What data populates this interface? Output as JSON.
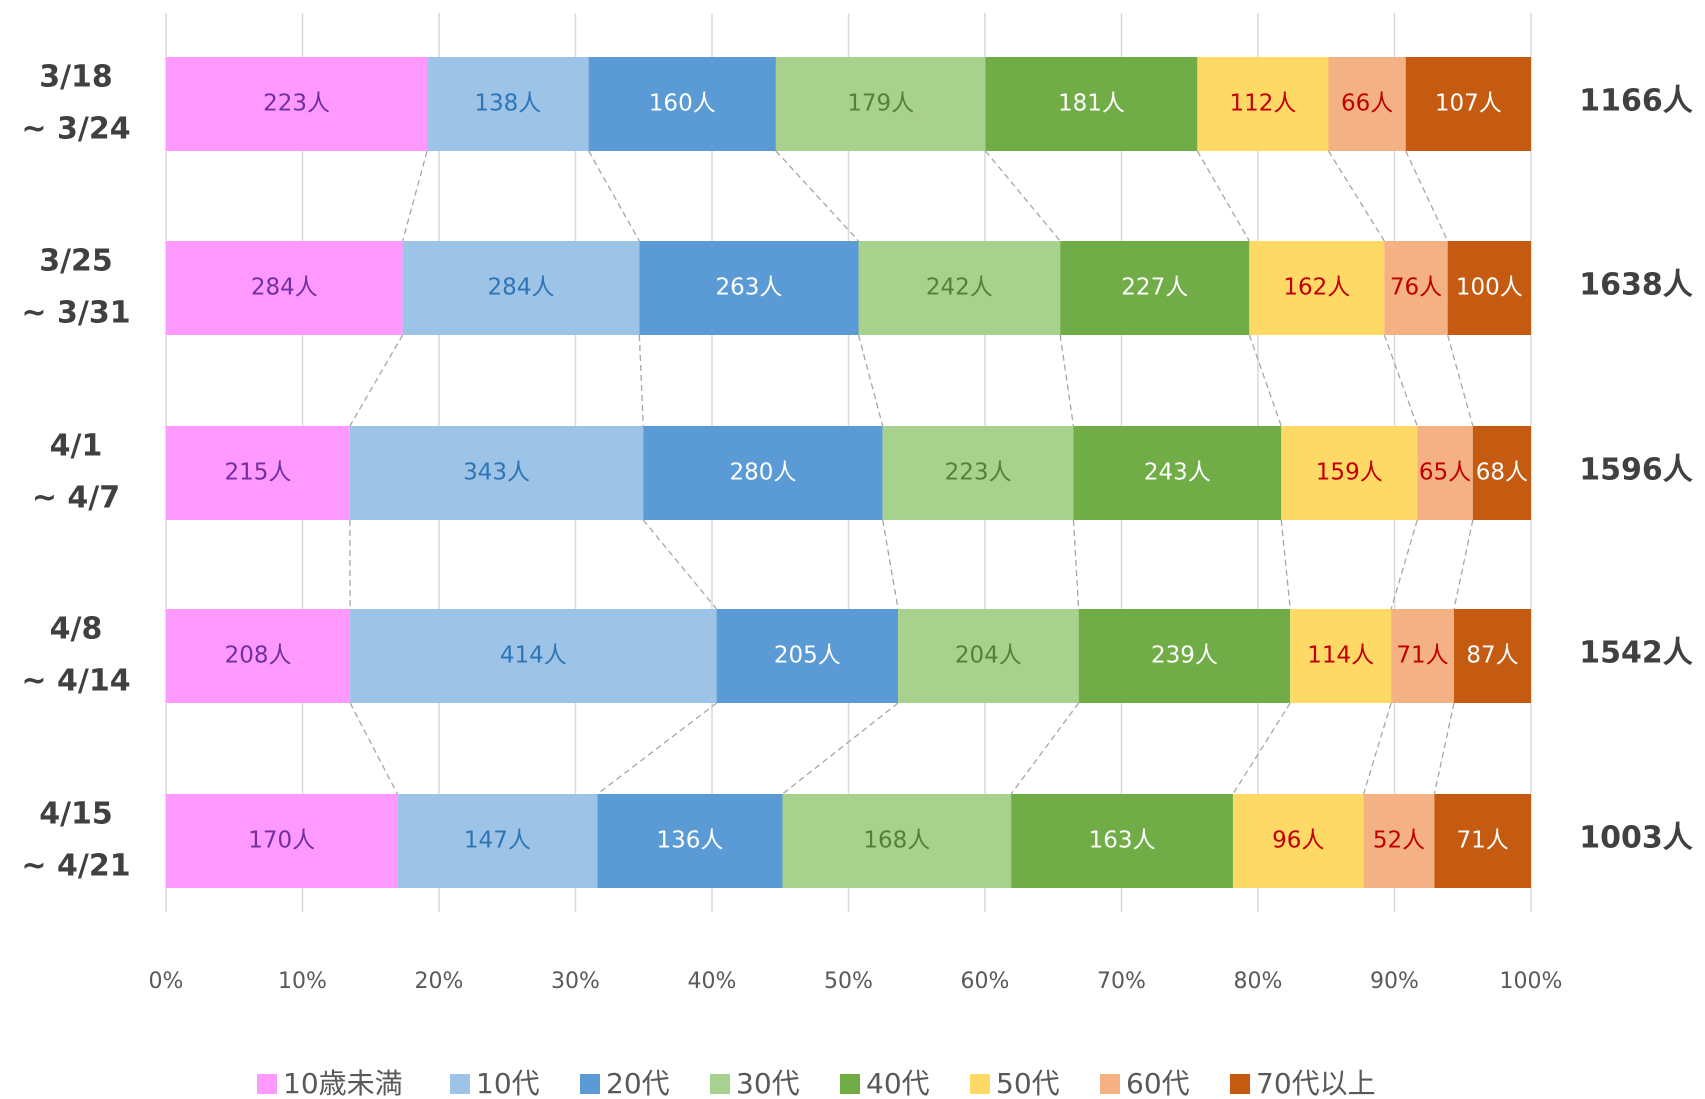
{
  "chart_data": {
    "type": "stacked-bar-100",
    "orientation": "horizontal",
    "categories": [
      [
        "3/18",
        "~ 3/24"
      ],
      [
        "3/25",
        "~ 3/31"
      ],
      [
        "4/1",
        "~ 4/7"
      ],
      [
        "4/8",
        "~ 4/14"
      ],
      [
        "4/15",
        "~ 4/21"
      ]
    ],
    "series": [
      {
        "name": "10歳未満",
        "color": "#ff99ff",
        "label_color": "#7030a0",
        "values": [
          223,
          284,
          215,
          208,
          170
        ],
        "value_labels": [
          "223人",
          "284人",
          "215人",
          "208人",
          "170人"
        ]
      },
      {
        "name": "10代",
        "color": "#9dc3e6",
        "label_color": "#2e75b6",
        "values": [
          138,
          284,
          343,
          414,
          147
        ],
        "value_labels": [
          "138人",
          "284人",
          "343人",
          "414人",
          "147人"
        ]
      },
      {
        "name": "20代",
        "color": "#5b9bd5",
        "label_color": "#ffffff",
        "values": [
          160,
          263,
          280,
          205,
          136
        ],
        "value_labels": [
          "160人",
          "263人",
          "280人",
          "205人",
          "136人"
        ]
      },
      {
        "name": "30代",
        "color": "#a9d18e",
        "label_color": "#548235",
        "values": [
          179,
          242,
          223,
          204,
          168
        ],
        "value_labels": [
          "179人",
          "242人",
          "223人",
          "204人",
          "168人"
        ]
      },
      {
        "name": "40代",
        "color": "#70ad47",
        "label_color": "#ffffff",
        "values": [
          181,
          227,
          243,
          239,
          163
        ],
        "value_labels": [
          "181人",
          "227人",
          "243人",
          "239人",
          "163人"
        ]
      },
      {
        "name": "50代",
        "color": "#ffd966",
        "label_color": "#c00000",
        "values": [
          112,
          162,
          159,
          114,
          96
        ],
        "value_labels": [
          "112人",
          "162人",
          "159人",
          "114人",
          "96人"
        ]
      },
      {
        "name": "60代",
        "color": "#f4b183",
        "label_color": "#c00000",
        "values": [
          66,
          76,
          65,
          71,
          52
        ],
        "value_labels": [
          "66人",
          "76人",
          "65人",
          "71人",
          "52人"
        ]
      },
      {
        "name": "70代以上",
        "color": "#c55a11",
        "label_color": "#ffffff",
        "values": [
          107,
          100,
          68,
          87,
          71
        ],
        "value_labels": [
          "107人",
          "100人",
          "68人",
          "87人",
          "71人"
        ]
      }
    ],
    "totals": [
      1166,
      1638,
      1596,
      1542,
      1003
    ],
    "total_labels": [
      "1166人",
      "1638人",
      "1596人",
      "1542人",
      "1003人"
    ],
    "xlim": [
      0,
      100
    ],
    "xticks": [
      {
        "value": 0,
        "label": "0%"
      },
      {
        "value": 10,
        "label": "10%"
      },
      {
        "value": 20,
        "label": "20%"
      },
      {
        "value": 30,
        "label": "30%"
      },
      {
        "value": 40,
        "label": "40%"
      },
      {
        "value": 50,
        "label": "50%"
      },
      {
        "value": 60,
        "label": "60%"
      },
      {
        "value": 70,
        "label": "70%"
      },
      {
        "value": 80,
        "label": "80%"
      },
      {
        "value": 90,
        "label": "90%"
      },
      {
        "value": 100,
        "label": "100%"
      }
    ],
    "grid": true,
    "legend": "bottom"
  }
}
